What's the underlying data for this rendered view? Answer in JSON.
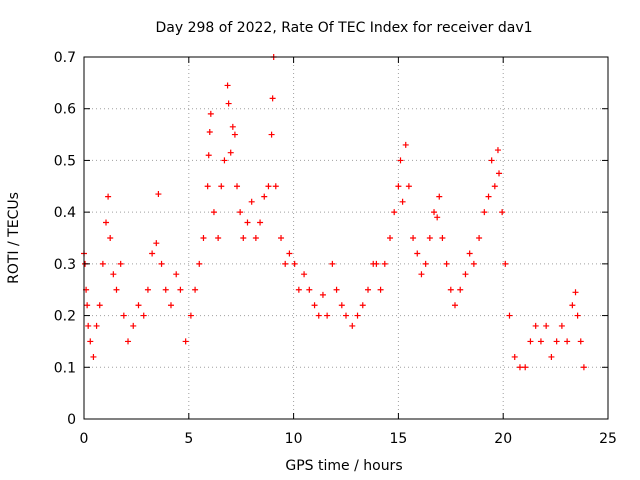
{
  "chart_data": {
    "type": "scatter",
    "title": "Day 298 of 2022, Rate Of TEC Index for receiver dav1",
    "xlabel": "GPS time / hours",
    "ylabel": "ROTI / TECUs",
    "xlim": [
      0,
      25
    ],
    "ylim": [
      0,
      0.7
    ],
    "x_ticks": [
      "0",
      "5",
      "10",
      "15",
      "20",
      "25"
    ],
    "y_ticks": [
      "0",
      "0.1",
      "0.2",
      "0.3",
      "0.4",
      "0.5",
      "0.6",
      "0.7"
    ],
    "grid": true,
    "legend": "none",
    "marker": "plus",
    "color": "#ff0000",
    "series": [
      {
        "points": [
          [
            0.0,
            0.32
          ],
          [
            0.05,
            0.3
          ],
          [
            0.1,
            0.25
          ],
          [
            0.15,
            0.22
          ],
          [
            0.2,
            0.18
          ],
          [
            0.3,
            0.15
          ],
          [
            0.45,
            0.12
          ],
          [
            0.6,
            0.18
          ],
          [
            0.75,
            0.22
          ],
          [
            0.9,
            0.3
          ],
          [
            1.05,
            0.38
          ],
          [
            1.15,
            0.43
          ],
          [
            1.25,
            0.35
          ],
          [
            1.4,
            0.28
          ],
          [
            1.55,
            0.25
          ],
          [
            1.75,
            0.3
          ],
          [
            1.9,
            0.2
          ],
          [
            2.1,
            0.15
          ],
          [
            2.35,
            0.18
          ],
          [
            2.6,
            0.22
          ],
          [
            2.85,
            0.2
          ],
          [
            3.05,
            0.25
          ],
          [
            3.25,
            0.32
          ],
          [
            3.45,
            0.34
          ],
          [
            3.55,
            0.435
          ],
          [
            3.7,
            0.3
          ],
          [
            3.9,
            0.25
          ],
          [
            4.15,
            0.22
          ],
          [
            4.4,
            0.28
          ],
          [
            4.6,
            0.25
          ],
          [
            4.85,
            0.15
          ],
          [
            5.1,
            0.2
          ],
          [
            5.3,
            0.25
          ],
          [
            5.5,
            0.3
          ],
          [
            5.7,
            0.35
          ],
          [
            5.9,
            0.45
          ],
          [
            5.95,
            0.51
          ],
          [
            6.0,
            0.555
          ],
          [
            6.05,
            0.59
          ],
          [
            6.2,
            0.4
          ],
          [
            6.4,
            0.35
          ],
          [
            6.55,
            0.45
          ],
          [
            6.7,
            0.5
          ],
          [
            6.85,
            0.645
          ],
          [
            6.9,
            0.61
          ],
          [
            7.0,
            0.515
          ],
          [
            7.1,
            0.565
          ],
          [
            7.2,
            0.55
          ],
          [
            7.3,
            0.45
          ],
          [
            7.45,
            0.4
          ],
          [
            7.6,
            0.35
          ],
          [
            7.8,
            0.38
          ],
          [
            8.0,
            0.42
          ],
          [
            8.2,
            0.35
          ],
          [
            8.4,
            0.38
          ],
          [
            8.6,
            0.43
          ],
          [
            8.8,
            0.45
          ],
          [
            8.95,
            0.55
          ],
          [
            9.0,
            0.62
          ],
          [
            9.05,
            0.7
          ],
          [
            9.15,
            0.45
          ],
          [
            9.4,
            0.35
          ],
          [
            9.6,
            0.3
          ],
          [
            9.8,
            0.32
          ],
          [
            10.05,
            0.3
          ],
          [
            10.25,
            0.25
          ],
          [
            10.5,
            0.28
          ],
          [
            10.75,
            0.25
          ],
          [
            11.0,
            0.22
          ],
          [
            11.2,
            0.2
          ],
          [
            11.4,
            0.24
          ],
          [
            11.6,
            0.2
          ],
          [
            11.85,
            0.3
          ],
          [
            12.05,
            0.25
          ],
          [
            12.3,
            0.22
          ],
          [
            12.5,
            0.2
          ],
          [
            12.8,
            0.18
          ],
          [
            13.05,
            0.2
          ],
          [
            13.3,
            0.22
          ],
          [
            13.55,
            0.25
          ],
          [
            13.8,
            0.3
          ],
          [
            13.95,
            0.3
          ],
          [
            14.15,
            0.25
          ],
          [
            14.35,
            0.3
          ],
          [
            14.6,
            0.35
          ],
          [
            14.8,
            0.4
          ],
          [
            15.0,
            0.45
          ],
          [
            15.1,
            0.5
          ],
          [
            15.2,
            0.42
          ],
          [
            15.35,
            0.53
          ],
          [
            15.5,
            0.45
          ],
          [
            15.7,
            0.35
          ],
          [
            15.9,
            0.32
          ],
          [
            16.1,
            0.28
          ],
          [
            16.3,
            0.3
          ],
          [
            16.5,
            0.35
          ],
          [
            16.7,
            0.4
          ],
          [
            16.85,
            0.39
          ],
          [
            16.95,
            0.43
          ],
          [
            17.1,
            0.35
          ],
          [
            17.3,
            0.3
          ],
          [
            17.5,
            0.25
          ],
          [
            17.7,
            0.22
          ],
          [
            17.95,
            0.25
          ],
          [
            18.2,
            0.28
          ],
          [
            18.4,
            0.32
          ],
          [
            18.6,
            0.3
          ],
          [
            18.85,
            0.35
          ],
          [
            19.1,
            0.4
          ],
          [
            19.3,
            0.43
          ],
          [
            19.45,
            0.5
          ],
          [
            19.6,
            0.45
          ],
          [
            19.75,
            0.52
          ],
          [
            19.8,
            0.475
          ],
          [
            19.95,
            0.4
          ],
          [
            20.1,
            0.3
          ],
          [
            20.3,
            0.2
          ],
          [
            20.55,
            0.12
          ],
          [
            20.8,
            0.1
          ],
          [
            21.05,
            0.1
          ],
          [
            21.3,
            0.15
          ],
          [
            21.55,
            0.18
          ],
          [
            21.8,
            0.15
          ],
          [
            22.05,
            0.18
          ],
          [
            22.3,
            0.12
          ],
          [
            22.55,
            0.15
          ],
          [
            22.8,
            0.18
          ],
          [
            23.05,
            0.15
          ],
          [
            23.3,
            0.22
          ],
          [
            23.45,
            0.245
          ],
          [
            23.55,
            0.2
          ],
          [
            23.7,
            0.15
          ],
          [
            23.85,
            0.1
          ]
        ]
      }
    ]
  }
}
